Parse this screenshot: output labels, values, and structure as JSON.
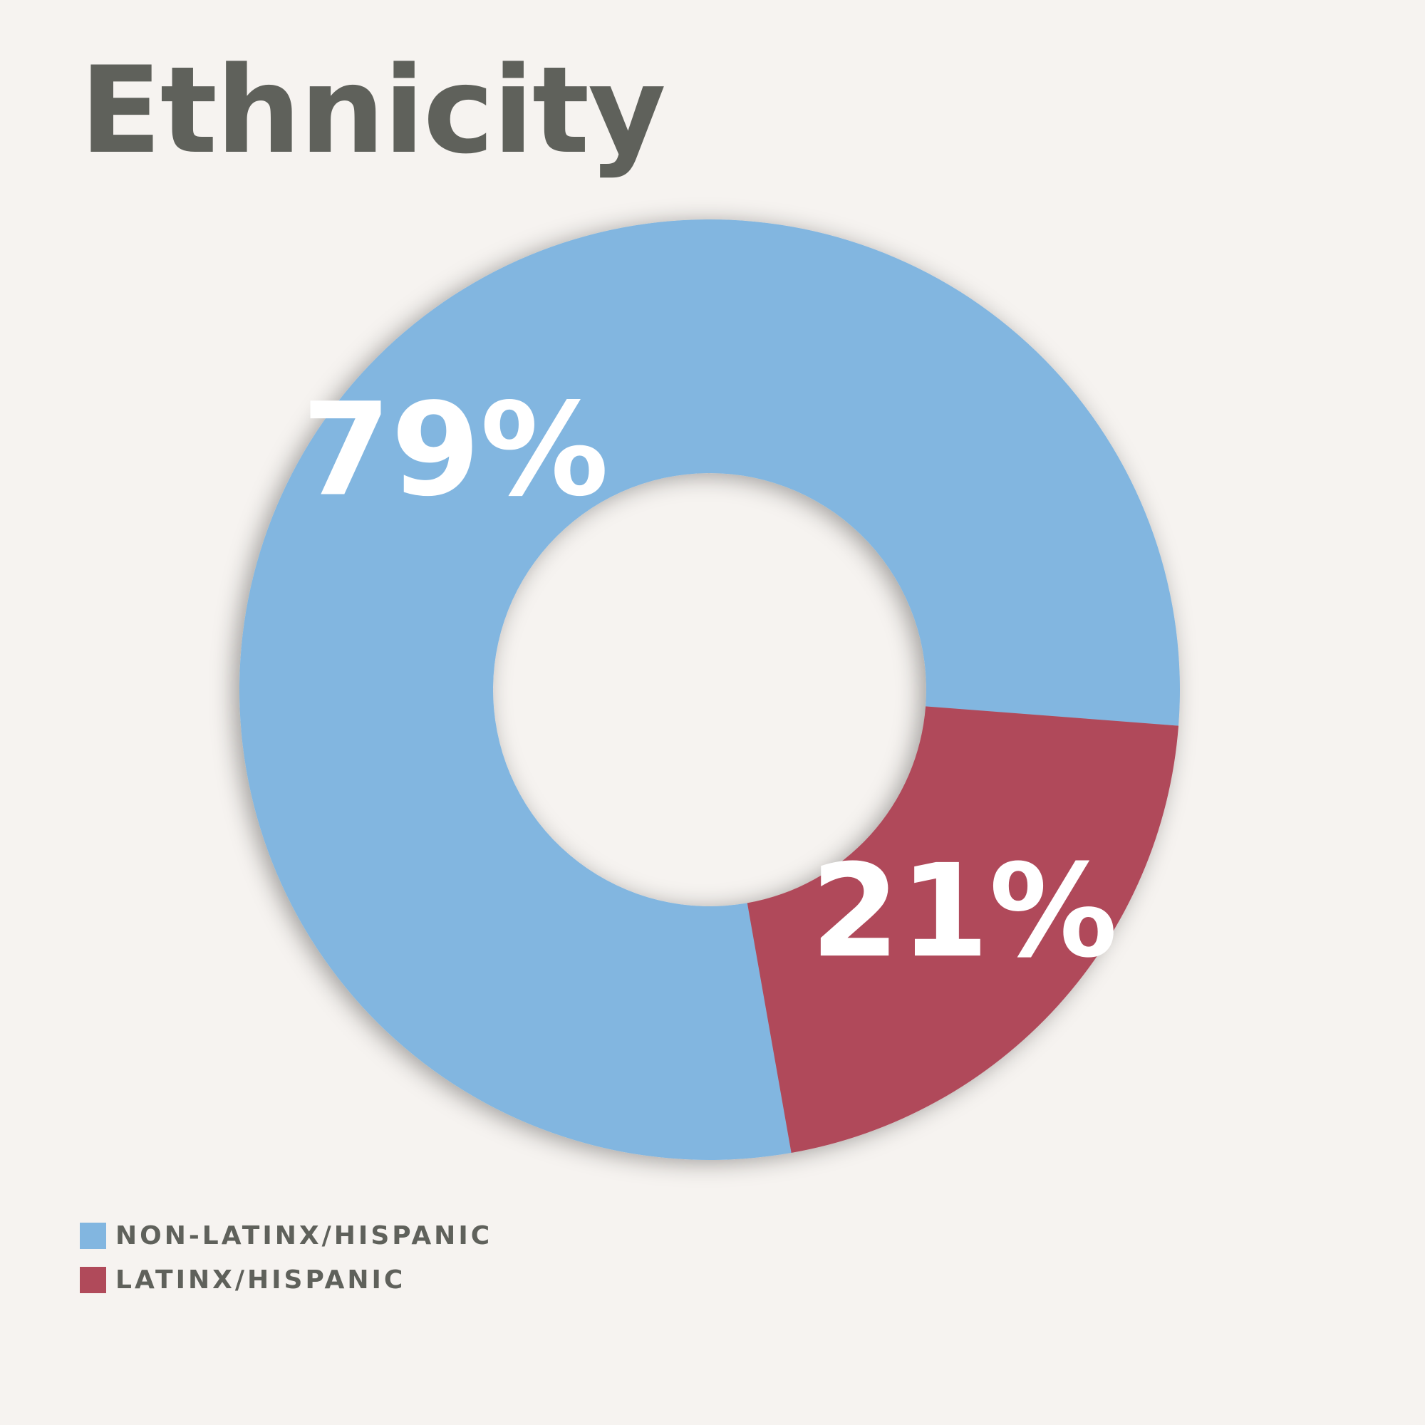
{
  "chart_data": {
    "type": "donut",
    "title": "Ethnicity",
    "categories": [
      "NON-LATINX/HISPANIC",
      "LATINX/HISPANIC"
    ],
    "values": [
      79,
      21
    ],
    "value_labels": [
      "79%",
      "21%"
    ],
    "colors": [
      "#82b6e0",
      "#b04a5a"
    ]
  }
}
